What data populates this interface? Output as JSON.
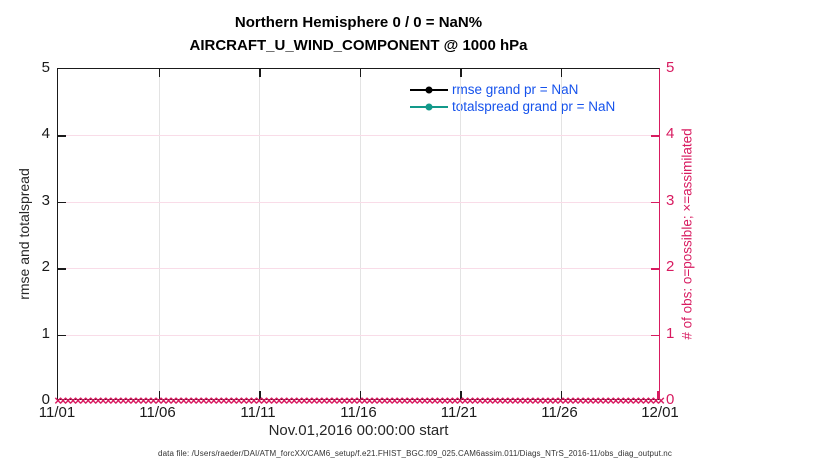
{
  "figure": {
    "title_line1": "Northern Hemisphere 0 / 0 = NaN%",
    "title_line2": "AIRCRAFT_U_WIND_COMPONENT @ 1000 hPa",
    "xlabel": "Nov.01,2016 00:00:00 start",
    "ylabel_left": "rmse and totalspread",
    "ylabel_right": "# of obs: o=possible; ×=assimilated",
    "datafile_caption": "data file: /Users/raeder/DAI/ATM_forcXX/CAM6_setup/f.e21.FHIST_BGC.f09_025.CAM6assim.011/Diags_NTrS_2016-11/obs_diag_output.nc",
    "legend": {
      "text_color": "#1552ec",
      "items": [
        {
          "label": "rmse grand pr = NaN",
          "line_color": "#000000"
        },
        {
          "label": "totalspread grand pr = NaN",
          "line_color": "#12998a"
        }
      ]
    },
    "colors": {
      "right_axis": "#d81b60",
      "obs_marker": "#d81b60",
      "grid_vertical": "#e3e3e3",
      "grid_horizontal": "#f9dce8",
      "axis": "#1a1a1a"
    }
  },
  "chart_data": {
    "type": "line",
    "title": [
      "Northern Hemisphere 0 / 0 = NaN%",
      "AIRCRAFT_U_WIND_COMPONENT @ 1000 hPa"
    ],
    "xlabel": "Nov.01,2016 00:00:00 start",
    "x_tick_labels": [
      "11/01",
      "11/06",
      "11/11",
      "11/16",
      "11/21",
      "11/26",
      "12/01"
    ],
    "y_axis_left": {
      "label": "rmse and totalspread",
      "lim": [
        0,
        5
      ],
      "ticks": [
        0,
        1,
        2,
        3,
        4,
        5
      ],
      "color": "#1a1a1a"
    },
    "y_axis_right": {
      "label": "# of obs: o=possible; ×=assimilated",
      "lim": [
        0,
        5
      ],
      "ticks": [
        0,
        1,
        2,
        3,
        4,
        5
      ],
      "color": "#d81b60"
    },
    "grid": true,
    "legend_position": "top-right-inside",
    "series": [
      {
        "name": "rmse grand pr = NaN",
        "color": "#000000",
        "marker": "filled-circle",
        "values_all_nan": true,
        "plotted_points": 0
      },
      {
        "name": "totalspread grand pr = NaN",
        "color": "#12998a",
        "marker": "filled-circle",
        "values_all_nan": true,
        "plotted_points": 0
      }
    ],
    "obs_count_markers": {
      "description": "o=possible and x=assimilated observation counts, all zero along y=0",
      "n_points": 121,
      "value": 0,
      "marker_glyph": "×",
      "color": "#d81b60"
    }
  }
}
